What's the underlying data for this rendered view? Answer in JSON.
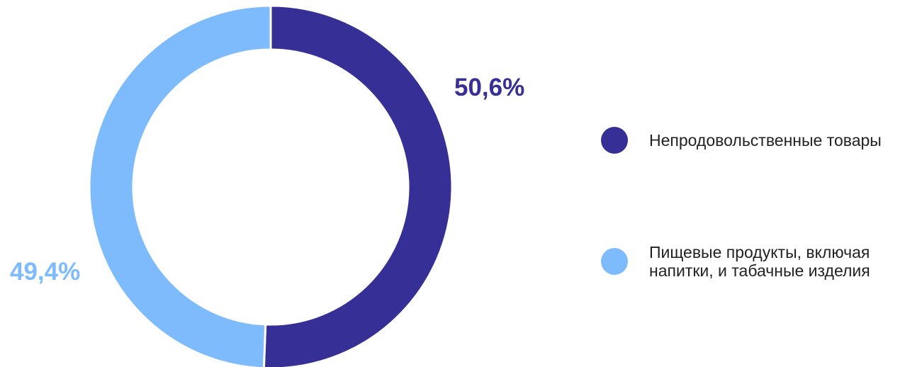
{
  "chart_data": {
    "type": "pie",
    "variant": "donut",
    "slices": [
      {
        "name": "Непродовольственные товары",
        "value": 50.6,
        "label": "50,6%",
        "color": "#362F95"
      },
      {
        "name": "Пищевые продукты, включая напитки, и табачные изделия",
        "value": 49.4,
        "label": "49,4%",
        "color": "#7DBBFC"
      }
    ],
    "legend": {
      "position": "right",
      "items": [
        {
          "text": "Непродовольственные товары",
          "color": "#362F95"
        },
        {
          "lines": [
            "Пищевые продукты, включая",
            "напитки, и табачные изделия"
          ],
          "color": "#7DBBFC"
        }
      ]
    },
    "title": "",
    "start_angle": "top",
    "direction": "clockwise"
  }
}
